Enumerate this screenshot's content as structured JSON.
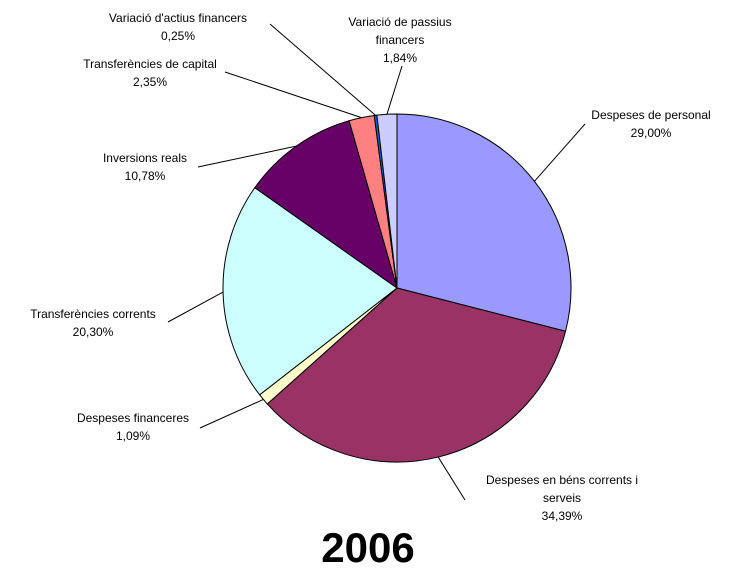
{
  "chart_data": {
    "type": "pie",
    "title": "2006",
    "categories": [
      "Despeses de personal",
      "Despeses en béns corrents i serveis",
      "Despeses financeres",
      "Transferències corrents",
      "Inversions reals",
      "Transferències de capital",
      "Variació d'actius financers",
      "Variació de passius financers"
    ],
    "values": [
      29.0,
      34.39,
      1.09,
      20.3,
      10.78,
      2.35,
      0.25,
      1.84
    ],
    "value_labels": [
      "29,00%",
      "34,39%",
      "1,09%",
      "20,30%",
      "10,78%",
      "2,35%",
      "0,25%",
      "1,84%"
    ],
    "colors": [
      "#9999ff",
      "#993366",
      "#ffffcc",
      "#ccffff",
      "#660066",
      "#ff8080",
      "#0066cc",
      "#ccccff"
    ]
  }
}
